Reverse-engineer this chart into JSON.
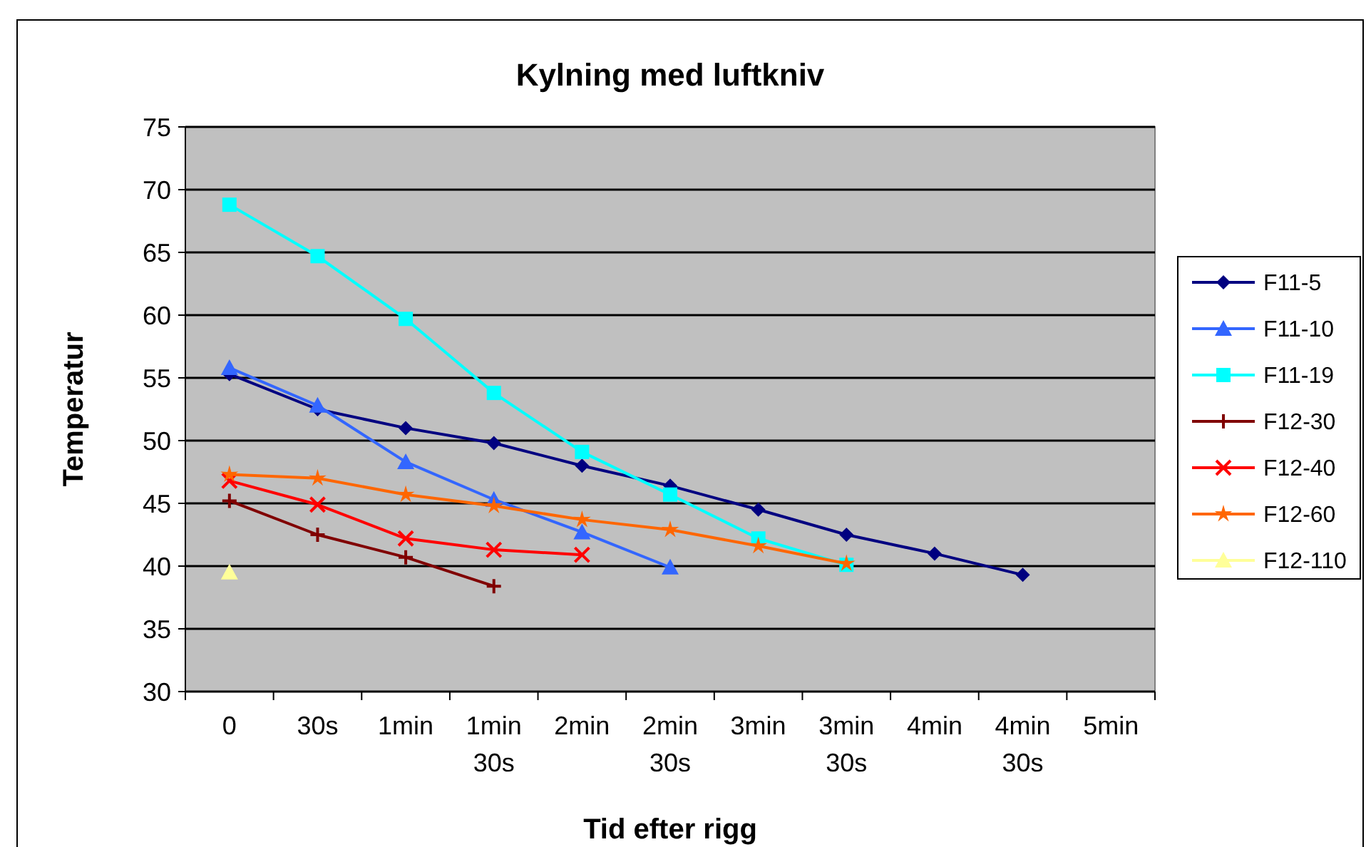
{
  "chart_data": {
    "type": "line",
    "title": "Kylning med luftkniv",
    "xlabel": "Tid efter rigg",
    "ylabel": "Temperatur",
    "categories": [
      "0",
      "30s",
      "1min",
      "1min\n30s",
      "2min",
      "2min\n30s",
      "3min",
      "3min\n30s",
      "4min",
      "4min\n30s",
      "5min"
    ],
    "ylim": [
      30,
      75
    ],
    "yticks": [
      30,
      35,
      40,
      45,
      50,
      55,
      60,
      65,
      70,
      75
    ],
    "grid": "y",
    "legend": "right",
    "series": [
      {
        "name": "F11-5",
        "color": "#000080",
        "marker": "diamond",
        "values": [
          55.3,
          52.5,
          51,
          49.8,
          48,
          46.4,
          44.5,
          42.5,
          41,
          39.3,
          null
        ]
      },
      {
        "name": "F11-10",
        "color": "#3366ff",
        "marker": "triangle",
        "values": [
          55.8,
          52.8,
          48.3,
          45.3,
          42.7,
          39.9,
          null,
          null,
          null,
          null,
          null
        ]
      },
      {
        "name": "F11-19",
        "color": "#00ffff",
        "marker": "square",
        "values": [
          68.8,
          64.7,
          59.7,
          53.8,
          49.1,
          45.7,
          42.2,
          40.1,
          null,
          null,
          null
        ]
      },
      {
        "name": "F12-30",
        "color": "#800000",
        "marker": "plus",
        "values": [
          45.2,
          42.5,
          40.7,
          38.4,
          null,
          null,
          null,
          null,
          null,
          null,
          null
        ]
      },
      {
        "name": "F12-40",
        "color": "#ff0000",
        "marker": "cross",
        "values": [
          46.8,
          44.9,
          42.2,
          41.3,
          40.9,
          null,
          null,
          null,
          null,
          null,
          null
        ]
      },
      {
        "name": "F12-60",
        "color": "#ff6600",
        "marker": "star",
        "values": [
          47.3,
          47,
          45.7,
          44.8,
          43.7,
          42.9,
          41.6,
          40.2,
          null,
          null,
          null
        ]
      },
      {
        "name": "F12-110",
        "color": "#ffff99",
        "marker": "triangle",
        "values": [
          39.5,
          null,
          null,
          null,
          null,
          null,
          null,
          null,
          null,
          null,
          null
        ]
      }
    ]
  }
}
